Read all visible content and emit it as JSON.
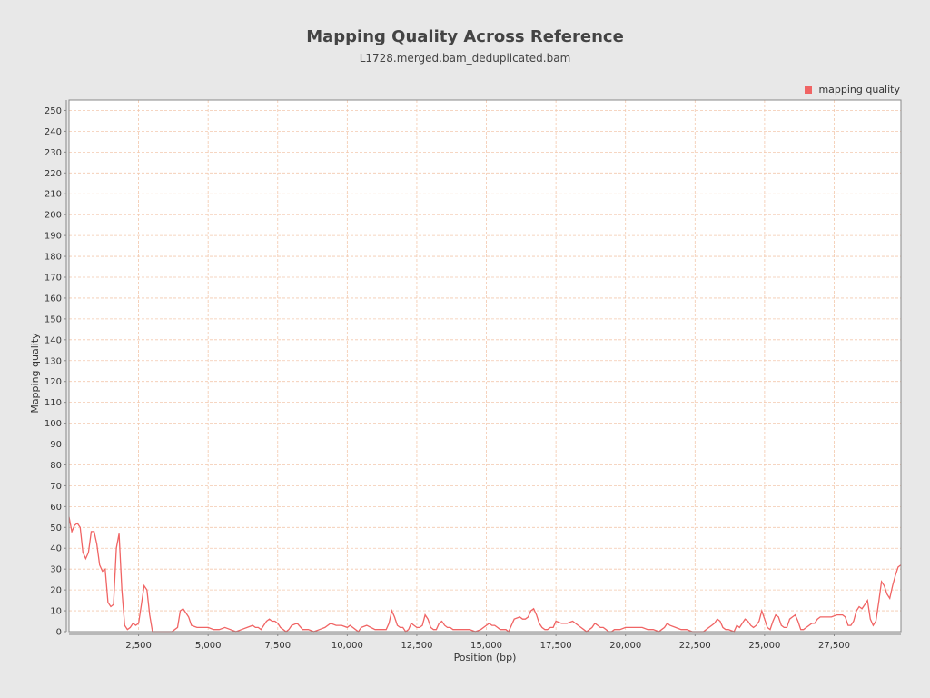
{
  "chart_data": {
    "type": "line",
    "title": "Mapping Quality Across Reference",
    "subtitle": "L1728.merged.bam_deduplicated.bam",
    "xlabel": "Position (bp)",
    "ylabel": "Mapping quality",
    "xlim": [
      0,
      29900
    ],
    "ylim": [
      0,
      255
    ],
    "x_ticks": [
      2500,
      5000,
      7500,
      10000,
      12500,
      15000,
      17500,
      20000,
      22500,
      25000,
      27500
    ],
    "x_tick_labels": [
      "2,500",
      "5,000",
      "7,500",
      "10,000",
      "12,500",
      "15,000",
      "17,500",
      "20,000",
      "22,500",
      "25,000",
      "27,500"
    ],
    "y_ticks": [
      0,
      10,
      20,
      30,
      40,
      50,
      60,
      70,
      80,
      90,
      100,
      110,
      120,
      130,
      140,
      150,
      160,
      170,
      180,
      190,
      200,
      210,
      220,
      230,
      240,
      250
    ],
    "grid": true,
    "legend_position": "top-right",
    "series": [
      {
        "name": "mapping quality",
        "color": "#f06464",
        "x": [
          0,
          100,
          200,
          300,
          400,
          500,
          600,
          700,
          800,
          900,
          1000,
          1100,
          1200,
          1300,
          1400,
          1500,
          1600,
          1700,
          1800,
          1900,
          2000,
          2100,
          2200,
          2300,
          2400,
          2500,
          2600,
          2700,
          2800,
          2900,
          3000,
          3200,
          3500,
          3700,
          3800,
          3900,
          4000,
          4100,
          4200,
          4300,
          4400,
          4600,
          4800,
          5000,
          5200,
          5400,
          5600,
          5800,
          6000,
          6200,
          6400,
          6600,
          6700,
          6800,
          6900,
          7000,
          7100,
          7200,
          7300,
          7400,
          7500,
          7600,
          7700,
          7800,
          7900,
          8000,
          8200,
          8400,
          8600,
          8800,
          9000,
          9200,
          9400,
          9600,
          9800,
          10000,
          10100,
          10200,
          10300,
          10400,
          10500,
          10700,
          11000,
          11200,
          11400,
          11500,
          11600,
          11700,
          11800,
          11900,
          12000,
          12100,
          12200,
          12300,
          12400,
          12500,
          12600,
          12700,
          12800,
          12900,
          13000,
          13100,
          13200,
          13300,
          13400,
          13500,
          13600,
          13700,
          13800,
          13900,
          14000,
          14200,
          14400,
          14600,
          14800,
          15000,
          15100,
          15200,
          15300,
          15400,
          15500,
          15600,
          15700,
          15800,
          16000,
          16200,
          16300,
          16400,
          16500,
          16600,
          16700,
          16800,
          16900,
          17000,
          17100,
          17200,
          17300,
          17400,
          17500,
          17700,
          17900,
          18100,
          18300,
          18400,
          18500,
          18600,
          18700,
          18800,
          18900,
          19000,
          19100,
          19200,
          19300,
          19400,
          19500,
          19600,
          19800,
          20000,
          20200,
          20400,
          20600,
          20800,
          21000,
          21200,
          21300,
          21400,
          21500,
          21600,
          21800,
          22000,
          22200,
          22400,
          22600,
          22800,
          22900,
          23000,
          23100,
          23200,
          23300,
          23400,
          23500,
          23600,
          23700,
          23900,
          24000,
          24100,
          24200,
          24300,
          24400,
          24500,
          24600,
          24700,
          24800,
          24900,
          25000,
          25100,
          25200,
          25300,
          25400,
          25500,
          25600,
          25700,
          25800,
          25900,
          26000,
          26100,
          26200,
          26300,
          26400,
          26500,
          26600,
          26700,
          26800,
          26900,
          27000,
          27200,
          27400,
          27600,
          27800,
          27900,
          28000,
          28100,
          28200,
          28300,
          28400,
          28500,
          28600,
          28700,
          28800,
          28900,
          29000,
          29100,
          29200,
          29300,
          29400,
          29500,
          29600,
          29700,
          29800,
          29900
        ],
        "y": [
          55,
          48,
          51,
          52,
          50,
          38,
          35,
          38,
          48,
          48,
          42,
          32,
          29,
          30,
          14,
          12,
          13,
          40,
          47,
          20,
          3,
          1,
          2,
          4,
          3,
          4,
          13,
          22,
          20,
          8,
          0,
          0,
          0,
          0,
          1,
          2,
          10,
          11,
          9,
          7,
          3,
          2,
          2,
          2,
          1,
          1,
          2,
          1,
          0,
          1,
          2,
          3,
          2,
          2,
          1,
          3,
          5,
          6,
          5,
          5,
          4,
          2,
          1,
          0,
          1,
          3,
          4,
          1,
          1,
          0,
          1,
          2,
          4,
          3,
          3,
          2,
          3,
          2,
          1,
          0,
          2,
          3,
          1,
          1,
          1,
          4,
          10,
          7,
          3,
          2,
          2,
          0,
          1,
          4,
          3,
          2,
          2,
          3,
          8,
          6,
          2,
          1,
          1,
          4,
          5,
          3,
          2,
          2,
          1,
          1,
          1,
          1,
          1,
          0,
          1,
          3,
          4,
          3,
          3,
          2,
          1,
          1,
          1,
          0,
          6,
          7,
          6,
          6,
          7,
          10,
          11,
          8,
          4,
          2,
          1,
          1,
          2,
          2,
          5,
          4,
          4,
          5,
          3,
          2,
          1,
          0,
          1,
          2,
          4,
          3,
          2,
          2,
          1,
          0,
          0,
          1,
          1,
          2,
          2,
          2,
          2,
          1,
          1,
          0,
          1,
          2,
          4,
          3,
          2,
          1,
          1,
          0,
          0,
          0,
          1,
          2,
          3,
          4,
          6,
          5,
          2,
          1,
          1,
          0,
          3,
          2,
          4,
          6,
          5,
          3,
          2,
          3,
          5,
          10,
          6,
          2,
          1,
          5,
          8,
          7,
          3,
          2,
          2,
          6,
          7,
          8,
          5,
          1,
          1,
          2,
          3,
          4,
          4,
          6,
          7,
          7,
          7,
          8,
          8,
          7,
          3,
          3,
          5,
          10,
          12,
          11,
          13,
          15,
          6,
          3,
          5,
          14,
          24,
          22,
          18,
          16,
          22,
          27,
          31,
          32
        ]
      }
    ]
  }
}
